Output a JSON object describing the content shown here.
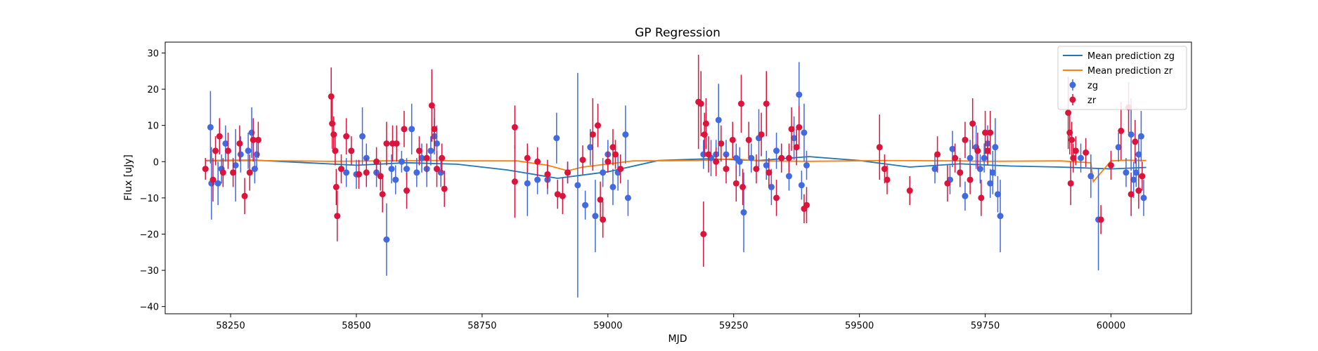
{
  "chart_data": {
    "type": "scatter",
    "title": "GP Regression",
    "xlabel": "MJD",
    "ylabel": "Flux [uJy]",
    "xlim": [
      58120,
      60160
    ],
    "ylim": [
      -42,
      33
    ],
    "xticks": [
      58250,
      58500,
      58750,
      59000,
      59250,
      59500,
      59750,
      60000
    ],
    "yticks": [
      -40,
      -30,
      -20,
      -10,
      0,
      10,
      20,
      30
    ],
    "legend_position": "top-right",
    "grid": false,
    "lines": [
      {
        "name": "Mean prediction zg",
        "color": "#1f77b4",
        "x": [
          58200,
          58300,
          58400,
          58500,
          58600,
          58700,
          58800,
          58900,
          59000,
          59100,
          59200,
          59300,
          59400,
          59500,
          59600,
          59700,
          59800,
          59900,
          60000,
          60070
        ],
        "y": [
          0.3,
          0.4,
          -0.3,
          -1.0,
          -0.3,
          -0.7,
          -2.3,
          -4.6,
          -2.8,
          0.3,
          0.8,
          0.3,
          1.4,
          0.3,
          -1.5,
          -0.6,
          -1.2,
          -1.5,
          -2.0,
          -1.6
        ]
      },
      {
        "name": "Mean prediction zr",
        "color": "#ff7f0e",
        "x": [
          58200,
          58300,
          58450,
          58550,
          58650,
          58700,
          58820,
          58880,
          58920,
          58950,
          59050,
          59180,
          59250,
          59300,
          59400,
          59550,
          59700,
          59750,
          59900,
          59960,
          59965,
          60000,
          60030,
          60070
        ],
        "y": [
          0.2,
          0.3,
          0.1,
          0.2,
          0.3,
          0.2,
          0.2,
          -1.0,
          -2.5,
          -1.5,
          0.2,
          0.3,
          0.8,
          0.2,
          0.1,
          0.3,
          0.2,
          0.1,
          0.2,
          -0.3,
          -5.5,
          0.2,
          0.4,
          0.3
        ]
      }
    ],
    "series": [
      {
        "name": "zg",
        "color": "#4169e1",
        "points": [
          [
            58210,
            9.5,
            10
          ],
          [
            58212,
            -6,
            10
          ],
          [
            58225,
            -6,
            6
          ],
          [
            58232,
            -2,
            4
          ],
          [
            58240,
            5,
            5
          ],
          [
            58260,
            -1,
            10
          ],
          [
            58270,
            2,
            5
          ],
          [
            58285,
            3,
            5
          ],
          [
            58292,
            8,
            7
          ],
          [
            58298,
            -2,
            4
          ],
          [
            58302,
            2,
            4
          ],
          [
            58480,
            -3,
            4
          ],
          [
            58500,
            -3.5,
            4
          ],
          [
            58512,
            7,
            8
          ],
          [
            58520,
            1,
            4
          ],
          [
            58540,
            -3,
            4
          ],
          [
            58560,
            -21.5,
            10
          ],
          [
            58570,
            -2,
            4
          ],
          [
            58578,
            -5,
            4
          ],
          [
            58590,
            0,
            3
          ],
          [
            58600,
            -2,
            3
          ],
          [
            58610,
            9,
            7
          ],
          [
            58620,
            -3,
            4
          ],
          [
            58630,
            1,
            4
          ],
          [
            58640,
            -2,
            5
          ],
          [
            58648,
            3,
            4
          ],
          [
            58655,
            7,
            5
          ],
          [
            58660,
            5,
            5
          ],
          [
            58668,
            -3,
            4
          ],
          [
            58840,
            -6,
            9
          ],
          [
            58860,
            -5,
            4
          ],
          [
            58880,
            -5,
            4
          ],
          [
            58898,
            6.5,
            7
          ],
          [
            58920,
            -3,
            3
          ],
          [
            58940,
            -6.5,
            31
          ],
          [
            58955,
            -12,
            4
          ],
          [
            58965,
            4,
            5
          ],
          [
            58975,
            -15,
            10
          ],
          [
            58990,
            -3,
            4
          ],
          [
            59000,
            2,
            4
          ],
          [
            59010,
            -7,
            5
          ],
          [
            59020,
            -3,
            5
          ],
          [
            59035,
            7.5,
            8
          ],
          [
            59040,
            -10,
            5
          ],
          [
            59190,
            2,
            4
          ],
          [
            59205,
            1,
            5
          ],
          [
            59215,
            2,
            4
          ],
          [
            59220,
            11.5,
            10
          ],
          [
            59235,
            2,
            4
          ],
          [
            59255,
            1,
            4
          ],
          [
            59262,
            0,
            4
          ],
          [
            59270,
            -14,
            11
          ],
          [
            59285,
            1,
            4
          ],
          [
            59300,
            6.5,
            8
          ],
          [
            59315,
            -1,
            4
          ],
          [
            59325,
            -7,
            5
          ],
          [
            59335,
            3,
            5
          ],
          [
            59345,
            1,
            4
          ],
          [
            59360,
            -4,
            4
          ],
          [
            59370,
            6.5,
            6
          ],
          [
            59380,
            18.5,
            9
          ],
          [
            59385,
            -6.5,
            4
          ],
          [
            59390,
            8,
            8
          ],
          [
            59395,
            -1,
            4
          ],
          [
            59650,
            -2,
            4
          ],
          [
            59680,
            -5,
            4
          ],
          [
            59685,
            3.5,
            5
          ],
          [
            59700,
            -3,
            4
          ],
          [
            59710,
            -9.5,
            4
          ],
          [
            59720,
            1,
            5
          ],
          [
            59732,
            4,
            6
          ],
          [
            59740,
            -2,
            4
          ],
          [
            59748,
            1,
            4
          ],
          [
            59755,
            5,
            5
          ],
          [
            59760,
            -6,
            4
          ],
          [
            59765,
            -3,
            6
          ],
          [
            59770,
            4,
            8
          ],
          [
            59775,
            -9,
            5
          ],
          [
            59780,
            -15,
            10
          ],
          [
            59940,
            1,
            4
          ],
          [
            59960,
            -4,
            6
          ],
          [
            59975,
            -16,
            14
          ],
          [
            60015,
            4,
            4
          ],
          [
            60030,
            -3,
            4
          ],
          [
            60040,
            7.5,
            10
          ],
          [
            60045,
            -5,
            5
          ],
          [
            60050,
            -3,
            4
          ],
          [
            60055,
            2,
            5
          ],
          [
            60060,
            7,
            7
          ],
          [
            60065,
            -10,
            5
          ]
        ]
      },
      {
        "name": "zr",
        "color": "#dc143c",
        "points": [
          [
            58200,
            -2,
            3
          ],
          [
            58215,
            -5,
            6
          ],
          [
            58220,
            3,
            4
          ],
          [
            58228,
            7,
            5
          ],
          [
            58235,
            -3,
            4
          ],
          [
            58245,
            3,
            5
          ],
          [
            58255,
            -3,
            4
          ],
          [
            58268,
            5,
            5
          ],
          [
            58278,
            -9.5,
            5
          ],
          [
            58288,
            -3,
            5
          ],
          [
            58295,
            6,
            6
          ],
          [
            58305,
            6,
            5
          ],
          [
            58450,
            18,
            8
          ],
          [
            58452,
            10.5,
            7
          ],
          [
            58455,
            7.5,
            5
          ],
          [
            58458,
            3,
            4
          ],
          [
            58460,
            -7,
            5
          ],
          [
            58462,
            -15,
            7
          ],
          [
            58470,
            -2,
            4
          ],
          [
            58480,
            7,
            5
          ],
          [
            58490,
            3,
            4
          ],
          [
            58505,
            -3.5,
            4
          ],
          [
            58520,
            -3,
            4
          ],
          [
            58540,
            0,
            4
          ],
          [
            58548,
            -4,
            4
          ],
          [
            58552,
            -9,
            5
          ],
          [
            58560,
            5,
            6
          ],
          [
            58572,
            5,
            5
          ],
          [
            58580,
            5,
            5
          ],
          [
            58595,
            9,
            5
          ],
          [
            58600,
            -8,
            5
          ],
          [
            58625,
            3,
            4
          ],
          [
            58640,
            1,
            4
          ],
          [
            58650,
            15.5,
            10
          ],
          [
            58655,
            9,
            6
          ],
          [
            58660,
            -2,
            5
          ],
          [
            58670,
            1,
            4
          ],
          [
            58675,
            -7.5,
            5
          ],
          [
            58815,
            9.5,
            6
          ],
          [
            58815,
            -5.5,
            10
          ],
          [
            58840,
            1,
            4
          ],
          [
            58860,
            0,
            4
          ],
          [
            58880,
            -3.5,
            4
          ],
          [
            58900,
            -9,
            4
          ],
          [
            58910,
            -9.5,
            5
          ],
          [
            58920,
            -3,
            3
          ],
          [
            58950,
            0.5,
            4
          ],
          [
            58970,
            7.5,
            10
          ],
          [
            58980,
            10,
            6
          ],
          [
            58985,
            -10.5,
            5
          ],
          [
            58990,
            -16,
            5
          ],
          [
            59000,
            0,
            3
          ],
          [
            59010,
            4,
            5
          ],
          [
            59015,
            2,
            4
          ],
          [
            59025,
            -2,
            4
          ],
          [
            59180,
            16.5,
            13
          ],
          [
            59185,
            16,
            9
          ],
          [
            59190,
            -20,
            9
          ],
          [
            59192,
            7.5,
            6
          ],
          [
            59195,
            10.5,
            7
          ],
          [
            59200,
            2,
            5
          ],
          [
            59215,
            0,
            4
          ],
          [
            59225,
            5,
            5
          ],
          [
            59235,
            -2,
            4
          ],
          [
            59248,
            6,
            5
          ],
          [
            59255,
            -6,
            5
          ],
          [
            59265,
            16,
            8
          ],
          [
            59268,
            -7,
            5
          ],
          [
            59280,
            6,
            5
          ],
          [
            59295,
            -2,
            4
          ],
          [
            59305,
            7.5,
            6
          ],
          [
            59315,
            16,
            9
          ],
          [
            59320,
            -3,
            4
          ],
          [
            59335,
            -10,
            5
          ],
          [
            59345,
            1,
            4
          ],
          [
            59360,
            1,
            4
          ],
          [
            59365,
            9,
            6
          ],
          [
            59375,
            4,
            5
          ],
          [
            59380,
            9.5,
            6
          ],
          [
            59390,
            -13,
            4
          ],
          [
            59395,
            -12,
            5
          ],
          [
            59540,
            4,
            9
          ],
          [
            59550,
            -2,
            4
          ],
          [
            59555,
            -5,
            4
          ],
          [
            59600,
            -8,
            4
          ],
          [
            59655,
            2,
            5
          ],
          [
            59675,
            -6,
            5
          ],
          [
            59690,
            1,
            4
          ],
          [
            59700,
            -3,
            4
          ],
          [
            59710,
            6,
            5
          ],
          [
            59720,
            -5,
            4
          ],
          [
            59725,
            10.5,
            7
          ],
          [
            59735,
            3,
            5
          ],
          [
            59742,
            -10,
            5
          ],
          [
            59750,
            8,
            6
          ],
          [
            59755,
            3,
            4
          ],
          [
            59760,
            8,
            6
          ],
          [
            59915,
            13.5,
            10
          ],
          [
            59918,
            8,
            6
          ],
          [
            59920,
            -6,
            6
          ],
          [
            59922,
            6,
            5
          ],
          [
            59925,
            1,
            4
          ],
          [
            59930,
            3,
            4
          ],
          [
            59950,
            2.5,
            4
          ],
          [
            59980,
            -16,
            4
          ],
          [
            60000,
            -1,
            4
          ],
          [
            60020,
            8.5,
            8
          ],
          [
            60035,
            15,
            7
          ],
          [
            60040,
            -9,
            6
          ],
          [
            60048,
            5.5,
            6
          ],
          [
            60055,
            -8,
            5
          ],
          [
            60062,
            -4,
            4
          ]
        ]
      }
    ]
  }
}
